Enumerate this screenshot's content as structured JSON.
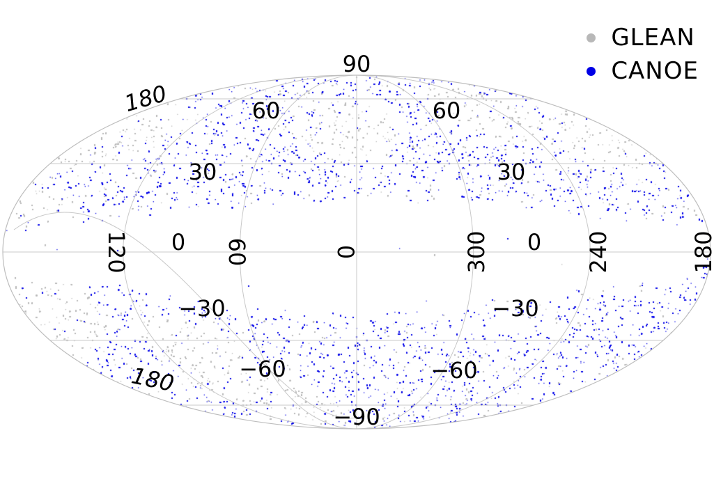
{
  "legend": [
    {
      "label": "GLEAN",
      "color": "#b8b8b8"
    },
    {
      "label": "CANOE",
      "color": "#0000e6"
    }
  ],
  "colors": {
    "glean": "#b8b8b8",
    "canoe": "#0000e6",
    "background": "#ffffff",
    "grid": "#c8c8c8"
  },
  "projection": "mollweide",
  "grid": true,
  "legend_position": "top-right",
  "galactic_lat_labels": [
    "90",
    "60",
    "60",
    "30",
    "30",
    "0",
    "0",
    "−30",
    "−30",
    "−60",
    "−60",
    "−90"
  ],
  "galactic_lon_labels": [
    "120",
    "60",
    "0",
    "300",
    "240",
    "180"
  ],
  "equatorial_labels": [
    "180",
    "180"
  ],
  "chart_data": {
    "type": "scatter",
    "series": [
      {
        "name": "GLEAN",
        "color": "#b8b8b8"
      },
      {
        "name": "CANOE",
        "color": "#0000e6"
      }
    ]
  }
}
